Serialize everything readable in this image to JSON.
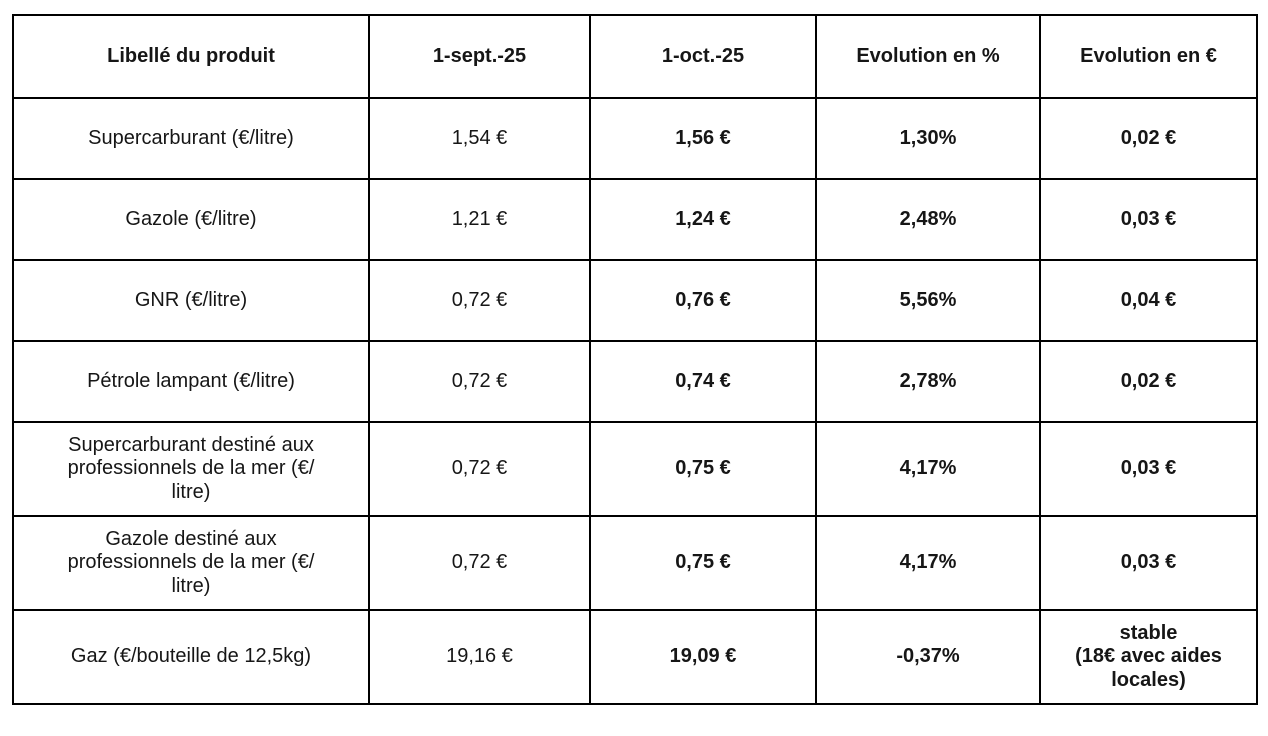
{
  "table": {
    "headers": [
      "Libellé du produit",
      "1-sept.-25",
      "1-oct.-25",
      "Evolution en %",
      "Evolution en €"
    ],
    "rows": [
      {
        "product": "Supercarburant (€/litre)",
        "sept": "1,54 €",
        "oct": "1,56 €",
        "evo_pct": "1,30%",
        "evo_eur": "0,02 €"
      },
      {
        "product": "Gazole (€/litre)",
        "sept": "1,21 €",
        "oct": "1,24 €",
        "evo_pct": "2,48%",
        "evo_eur": "0,03 €"
      },
      {
        "product": "GNR (€/litre)",
        "sept": "0,72 €",
        "oct": "0,76 €",
        "evo_pct": "5,56%",
        "evo_eur": "0,04 €"
      },
      {
        "product": "Pétrole lampant (€/litre)",
        "sept": "0,72 €",
        "oct": "0,74 €",
        "evo_pct": "2,78%",
        "evo_eur": "0,02 €"
      },
      {
        "product": "Supercarburant destiné aux\nprofessionnels de la mer (€/\nlitre)",
        "sept": "0,72 €",
        "oct": "0,75 €",
        "evo_pct": "4,17%",
        "evo_eur": "0,03 €"
      },
      {
        "product": "Gazole destiné aux\nprofessionnels de la mer (€/\nlitre)",
        "sept": "0,72 €",
        "oct": "0,75 €",
        "evo_pct": "4,17%",
        "evo_eur": "0,03 €"
      },
      {
        "product": "Gaz (€/bouteille de 12,5kg)",
        "sept": "19,16 €",
        "oct": "19,09 €",
        "evo_pct": "-0,37%",
        "evo_eur": "stable\n(18€ avec aides\nlocales)"
      }
    ],
    "colors": {
      "border": "#000000",
      "text": "#161616",
      "background": "#ffffff"
    }
  }
}
